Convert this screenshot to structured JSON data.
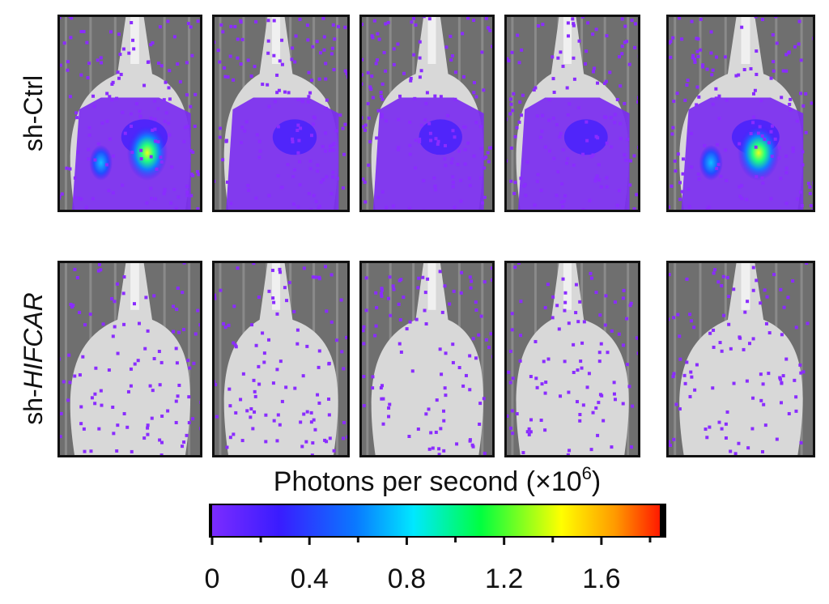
{
  "figure": {
    "rows": [
      {
        "prefix": "sh-",
        "name": "Ctrl"
      },
      {
        "prefix": "sh-",
        "name": "HIFCAR"
      }
    ],
    "colorbar": {
      "title": "Photons per second (×10",
      "exponent": "6",
      "title_end": ")",
      "xlim": [
        0,
        1.84
      ],
      "xticks": [
        0,
        0.4,
        0.8,
        1.2,
        1.6
      ]
    }
  }
}
